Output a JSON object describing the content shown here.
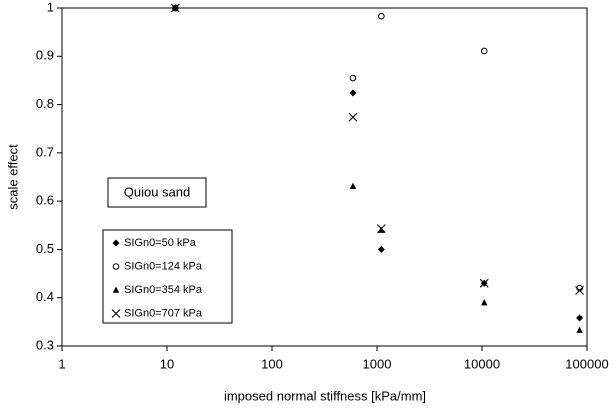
{
  "chart_data": {
    "type": "scatter",
    "xlabel": "imposed normal stiffness [kPa/mm]",
    "ylabel": "scale effect",
    "annotation": "Quiou sand",
    "xscale": "log",
    "xlim": [
      1,
      100000
    ],
    "xticks": [
      1,
      10,
      100,
      1000,
      10000,
      100000
    ],
    "ylim": [
      0.3,
      1
    ],
    "yticks": [
      0.3,
      0.4,
      0.5,
      0.6,
      0.7,
      0.8,
      0.9,
      1
    ],
    "grid": false,
    "legend": "lower left",
    "series": [
      {
        "name": "SIGn0=50 kPa",
        "color": "#000000",
        "marker": "diamond",
        "x": [
          12,
          590,
          1100,
          10500,
          85000
        ],
        "values": [
          1,
          0.824,
          0.5,
          0.43,
          0.358
        ]
      },
      {
        "name": "SIGn0=124 kPa",
        "color": "#000000",
        "marker": "circle",
        "x": [
          12,
          590,
          1100,
          10500,
          85000
        ],
        "values": [
          1,
          0.855,
          0.983,
          0.911,
          0.42
        ]
      },
      {
        "name": "SIGn0=354 kPa",
        "color": "#000000",
        "marker": "triangle",
        "x": [
          12,
          590,
          1100,
          10500,
          85000
        ],
        "values": [
          1,
          0.631,
          0.54,
          0.39,
          0.333
        ]
      },
      {
        "name": "SIGn0=707 kPa",
        "color": "#000000",
        "marker": "cross",
        "x": [
          12,
          590,
          1100,
          10500,
          85000
        ],
        "values": [
          1,
          0.774,
          0.543,
          0.43,
          0.415
        ]
      }
    ]
  }
}
